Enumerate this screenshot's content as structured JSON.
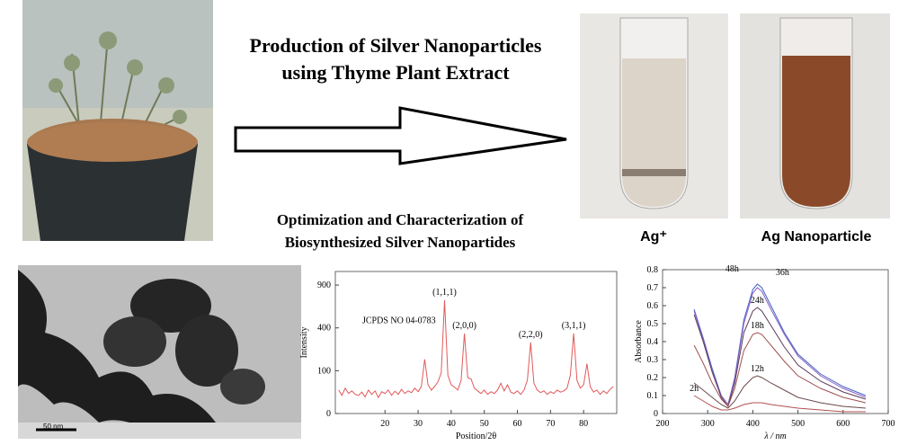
{
  "header": {
    "title": [
      "Production of Silver Nanoparticles",
      "using Thyme Plant Extract"
    ],
    "subtitle": [
      "Optimization and Characterization of",
      "Biosynthesized Silver Nanopartides"
    ]
  },
  "photos": {
    "labels": [
      "Ag⁺",
      "Ag Nanoparticle"
    ],
    "scale_bar": "50 nm"
  },
  "chart_data": [
    {
      "type": "line",
      "x_label": "Position/2θ",
      "y_label": "Intensity",
      "annotation": "JCPDS NO 04-0783",
      "y_scale": "sqrt",
      "xlim": [
        5,
        90
      ],
      "ylim": [
        0,
        1100
      ],
      "xticks": [
        20,
        30,
        40,
        50,
        60,
        70,
        80
      ],
      "yticks": [
        0,
        100,
        400,
        900
      ],
      "peak_labels": [
        {
          "text": "(1,1,1)",
          "x": 38
        },
        {
          "text": "(2,0,0)",
          "x": 44
        },
        {
          "text": "(2,2,0)",
          "x": 64
        },
        {
          "text": "(3,1,1)",
          "x": 77
        }
      ],
      "x": [
        6,
        7,
        8,
        9,
        10,
        11,
        12,
        13,
        14,
        15,
        16,
        17,
        18,
        19,
        20,
        21,
        22,
        23,
        24,
        25,
        26,
        27,
        28,
        29,
        30,
        31,
        32,
        33,
        34,
        35,
        36,
        37,
        38,
        39,
        40,
        41,
        42,
        43,
        44,
        45,
        46,
        47,
        48,
        49,
        50,
        51,
        52,
        53,
        54,
        55,
        56,
        57,
        58,
        59,
        60,
        61,
        62,
        63,
        64,
        65,
        66,
        67,
        68,
        69,
        70,
        71,
        72,
        73,
        74,
        75,
        76,
        77,
        78,
        79,
        80,
        81,
        82,
        83,
        84,
        85,
        86,
        87,
        88,
        89
      ],
      "series": [
        {
          "color": "#e05a5a",
          "values": [
            30,
            18,
            35,
            22,
            28,
            20,
            18,
            25,
            15,
            30,
            20,
            28,
            14,
            26,
            22,
            30,
            18,
            27,
            20,
            32,
            22,
            28,
            24,
            35,
            26,
            40,
            160,
            45,
            30,
            40,
            55,
            90,
            700,
            80,
            45,
            38,
            30,
            60,
            350,
            70,
            65,
            35,
            28,
            22,
            30,
            20,
            26,
            22,
            30,
            50,
            28,
            45,
            25,
            22,
            28,
            20,
            30,
            60,
            275,
            50,
            30,
            24,
            28,
            20,
            26,
            22,
            30,
            25,
            28,
            35,
            80,
            350,
            60,
            35,
            45,
            135,
            40,
            25,
            30,
            20,
            28,
            22,
            32,
            40
          ]
        }
      ]
    },
    {
      "type": "line",
      "x_label": "λ / nm",
      "y_label": "Absorbance",
      "xlim": [
        200,
        700
      ],
      "ylim": [
        0,
        0.8
      ],
      "xticks": [
        200,
        300,
        400,
        500,
        600,
        700
      ],
      "yticks": [
        0,
        0.1,
        0.2,
        0.3,
        0.4,
        0.5,
        0.6,
        0.7,
        0.8
      ],
      "x": [
        270,
        290,
        310,
        330,
        345,
        360,
        380,
        400,
        410,
        420,
        440,
        470,
        500,
        550,
        600,
        650
      ],
      "series": [
        {
          "name": "48h",
          "color": "#4060c8",
          "values": [
            0.58,
            0.42,
            0.25,
            0.1,
            0.05,
            0.2,
            0.52,
            0.69,
            0.72,
            0.7,
            0.6,
            0.45,
            0.33,
            0.22,
            0.15,
            0.1
          ]
        },
        {
          "name": "36h",
          "color": "#8a60c0",
          "values": [
            0.57,
            0.41,
            0.24,
            0.1,
            0.05,
            0.19,
            0.5,
            0.67,
            0.7,
            0.68,
            0.58,
            0.44,
            0.32,
            0.21,
            0.14,
            0.09
          ]
        },
        {
          "name": "24h",
          "color": "#5a3a5a",
          "values": [
            0.55,
            0.4,
            0.23,
            0.09,
            0.04,
            0.17,
            0.45,
            0.57,
            0.59,
            0.57,
            0.49,
            0.37,
            0.27,
            0.18,
            0.12,
            0.08
          ]
        },
        {
          "name": "18h",
          "color": "#a05050",
          "values": [
            0.38,
            0.28,
            0.17,
            0.08,
            0.04,
            0.14,
            0.35,
            0.44,
            0.45,
            0.44,
            0.38,
            0.29,
            0.21,
            0.14,
            0.09,
            0.06
          ]
        },
        {
          "name": "12h",
          "color": "#6a4a4a",
          "values": [
            0.17,
            0.13,
            0.09,
            0.05,
            0.03,
            0.07,
            0.15,
            0.2,
            0.21,
            0.2,
            0.17,
            0.13,
            0.09,
            0.06,
            0.04,
            0.03
          ]
        },
        {
          "name": "2h",
          "color": "#b05050",
          "values": [
            0.1,
            0.07,
            0.04,
            0.02,
            0.02,
            0.03,
            0.05,
            0.06,
            0.06,
            0.06,
            0.05,
            0.04,
            0.03,
            0.02,
            0.01,
            0.01
          ]
        }
      ]
    }
  ]
}
